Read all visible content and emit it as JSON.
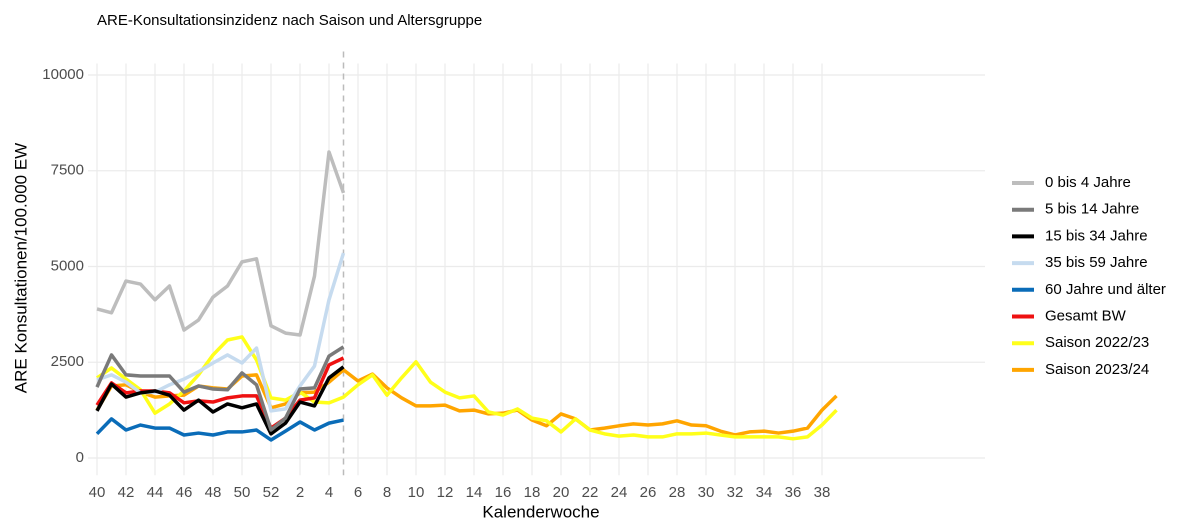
{
  "chart_data": {
    "type": "line",
    "title": "ARE-Konsultationsinzidenz nach Saison und Altersgruppe",
    "x_label": "Kalenderwoche",
    "y_label": "ARE Konsultationen/100.000 EW",
    "categories": [
      "40",
      null,
      "42",
      null,
      "44",
      null,
      "46",
      null,
      "48",
      null,
      "50",
      null,
      "52",
      null,
      "2",
      null,
      "4",
      null,
      "6",
      null,
      "8",
      null,
      "10",
      null,
      "12",
      null,
      "14",
      null,
      "16",
      null,
      "18",
      null,
      "20",
      null,
      "22",
      null,
      "24",
      null,
      "26",
      null,
      "28",
      null,
      "30",
      null,
      "32",
      null,
      "34",
      null,
      "36",
      null,
      "38",
      null
    ],
    "ylim": [
      -450,
      10300
    ],
    "yticks": [
      0,
      2500,
      5000,
      7500,
      10000
    ],
    "grid": true,
    "series": [
      {
        "name": "0 bis 4 Jahre",
        "color": "#bdbdbd",
        "values": [
          3890,
          3790,
          4620,
          4540,
          4130,
          4490,
          3340,
          3600,
          4200,
          4490,
          5120,
          5200,
          3450,
          3260,
          3210,
          4750,
          7990,
          6920,
          null,
          null,
          null,
          null,
          null,
          null,
          null,
          null,
          null,
          null,
          null,
          null,
          null,
          null,
          null,
          null,
          null,
          null,
          null,
          null,
          null,
          null,
          null,
          null,
          null,
          null,
          null,
          null,
          null,
          null,
          null,
          null,
          null,
          null
        ]
      },
      {
        "name": "5 bis 14 Jahre",
        "color": "#7a7a7a",
        "values": [
          1850,
          2690,
          2170,
          2140,
          2140,
          2140,
          1720,
          1880,
          1800,
          1780,
          2220,
          1910,
          730,
          1040,
          1800,
          1830,
          2660,
          2900,
          null,
          null,
          null,
          null,
          null,
          null,
          null,
          null,
          null,
          null,
          null,
          null,
          null,
          null,
          null,
          null,
          null,
          null,
          null,
          null,
          null,
          null,
          null,
          null,
          null,
          null,
          null,
          null,
          null,
          null,
          null,
          null,
          null,
          null
        ]
      },
      {
        "name": "15 bis 34 Jahre",
        "color": "#000000",
        "values": [
          1230,
          1930,
          1590,
          1700,
          1750,
          1640,
          1250,
          1510,
          1200,
          1410,
          1310,
          1410,
          630,
          910,
          1460,
          1360,
          2090,
          2380,
          null,
          null,
          null,
          null,
          null,
          null,
          null,
          null,
          null,
          null,
          null,
          null,
          null,
          null,
          null,
          null,
          null,
          null,
          null,
          null,
          null,
          null,
          null,
          null,
          null,
          null,
          null,
          null,
          null,
          null,
          null,
          null,
          null,
          null
        ]
      },
      {
        "name": "35 bis 59 Jahre",
        "color": "#c6dbef",
        "values": [
          2040,
          2170,
          1980,
          1700,
          1720,
          1910,
          2060,
          2250,
          2480,
          2690,
          2480,
          2870,
          1230,
          1280,
          1880,
          2400,
          4130,
          5350,
          null,
          null,
          null,
          null,
          null,
          null,
          null,
          null,
          null,
          null,
          null,
          null,
          null,
          null,
          null,
          null,
          null,
          null,
          null,
          null,
          null,
          null,
          null,
          null,
          null,
          null,
          null,
          null,
          null,
          null,
          null,
          null,
          null,
          null
        ]
      },
      {
        "name": "60 Jahre und älter",
        "color": "#0a6cb8",
        "values": [
          630,
          1020,
          730,
          860,
          780,
          780,
          600,
          650,
          600,
          680,
          680,
          730,
          470,
          700,
          940,
          730,
          910,
          990,
          null,
          null,
          null,
          null,
          null,
          null,
          null,
          null,
          null,
          null,
          null,
          null,
          null,
          null,
          null,
          null,
          null,
          null,
          null,
          null,
          null,
          null,
          null,
          null,
          null,
          null,
          null,
          null,
          null,
          null,
          null,
          null,
          null,
          null
        ]
      },
      {
        "name": "Gesamt BW",
        "color": "#ee1111",
        "values": [
          1380,
          1960,
          1700,
          1750,
          1750,
          1700,
          1440,
          1490,
          1460,
          1570,
          1620,
          1620,
          780,
          1040,
          1510,
          1570,
          2430,
          2610,
          null,
          null,
          null,
          null,
          null,
          null,
          null,
          null,
          null,
          null,
          null,
          null,
          null,
          null,
          null,
          null,
          null,
          null,
          null,
          null,
          null,
          null,
          null,
          null,
          null,
          null,
          null,
          null,
          null,
          null,
          null,
          null,
          null,
          null
        ]
      },
      {
        "name": "Saison 2022/23",
        "color": "#ffff1a",
        "values": [
          2090,
          2350,
          2060,
          1780,
          1170,
          1410,
          1750,
          2170,
          2690,
          3080,
          3160,
          2560,
          1570,
          1510,
          1720,
          1460,
          1440,
          1590,
          1910,
          2170,
          1640,
          2090,
          2510,
          1980,
          1720,
          1570,
          1620,
          1200,
          1120,
          1280,
          1040,
          970,
          680,
          1020,
          730,
          630,
          570,
          600,
          550,
          550,
          630,
          630,
          650,
          600,
          550,
          550,
          550,
          550,
          500,
          550,
          860,
          1250
        ]
      },
      {
        "name": "Saison 2023/24",
        "color": "#ffa500",
        "values": [
          1250,
          1880,
          1910,
          1720,
          1590,
          1620,
          1640,
          1880,
          1830,
          1800,
          2140,
          2170,
          1310,
          1410,
          1700,
          1720,
          1980,
          2300,
          2010,
          2190,
          1830,
          1570,
          1360,
          1360,
          1380,
          1230,
          1250,
          1150,
          1170,
          1250,
          990,
          840,
          1150,
          1020,
          730,
          780,
          840,
          890,
          860,
          890,
          970,
          860,
          840,
          700,
          600,
          680,
          700,
          650,
          700,
          780,
          1250,
          1620
        ]
      }
    ]
  }
}
